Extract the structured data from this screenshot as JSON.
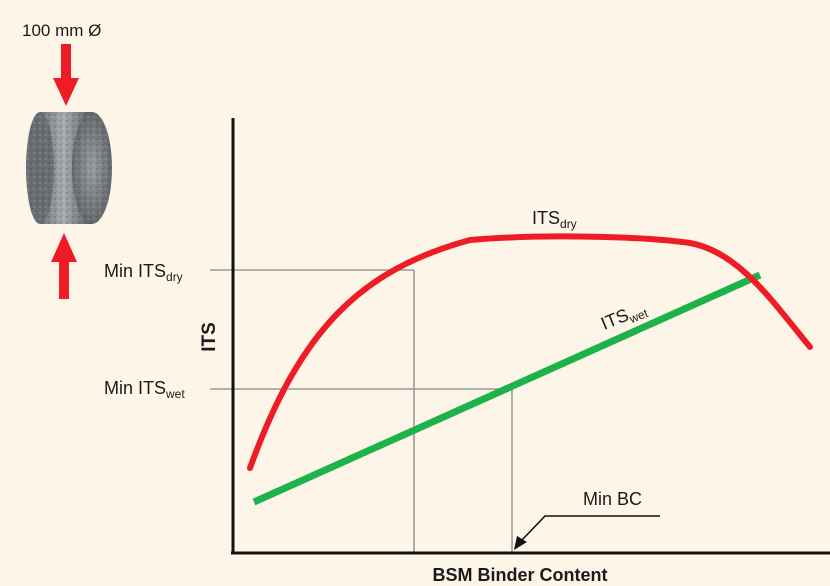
{
  "specimen": {
    "diameter_label": "100 mm Ø",
    "load_arrow_color": "#ee1c25"
  },
  "axes": {
    "ylabel": "ITS",
    "xlabel": "BSM Binder Content"
  },
  "curves": {
    "dry": {
      "label_main": "ITS",
      "label_sub": "dry",
      "color": "#ee1c25"
    },
    "wet": {
      "label_main": "ITS",
      "label_sub": "wet",
      "color": "#1db24a"
    }
  },
  "thresholds": {
    "min_dry": {
      "label_main": "Min ITS",
      "label_sub": "dry"
    },
    "min_wet": {
      "label_main": "Min ITS",
      "label_sub": "wet"
    },
    "min_bc": {
      "label": "Min BC"
    }
  },
  "colors": {
    "background": "#fdf6e8",
    "guide_lines": "#9a9a9a",
    "axis": "#111111"
  }
}
